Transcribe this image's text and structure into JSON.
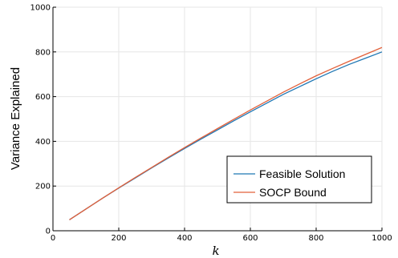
{
  "chart_data": {
    "type": "line",
    "title": "",
    "xlabel": "k",
    "ylabel": "Variance Explained",
    "xlim": [
      0,
      1000
    ],
    "ylim": [
      0,
      1000
    ],
    "xticks": [
      0,
      200,
      400,
      600,
      800,
      1000
    ],
    "yticks": [
      0,
      200,
      400,
      600,
      800,
      1000
    ],
    "xtick_labels": [
      "0",
      "200",
      "400",
      "600",
      "800",
      "1000"
    ],
    "ytick_labels": [
      "0",
      "200",
      "400",
      "600",
      "800",
      "1000"
    ],
    "grid": true,
    "legend_position": "bottom-right",
    "x": [
      50,
      100,
      150,
      200,
      250,
      300,
      350,
      400,
      450,
      500,
      550,
      600,
      650,
      700,
      750,
      800,
      850,
      900,
      950,
      1000
    ],
    "series": [
      {
        "name": "Feasible Solution",
        "color": "#1f77b4",
        "values": [
          49,
          97,
          145,
          191,
          236,
          281,
          325,
          368,
          410,
          451,
          492,
          532,
          571,
          610,
          645,
          680,
          713,
          744,
          772,
          800
        ]
      },
      {
        "name": "SOCP Bound",
        "color": "#e2603a",
        "values": [
          49,
          97,
          145,
          192,
          238,
          283,
          328,
          372,
          415,
          457,
          499,
          540,
          580,
          620,
          657,
          693,
          726,
          758,
          789,
          820
        ]
      }
    ]
  }
}
